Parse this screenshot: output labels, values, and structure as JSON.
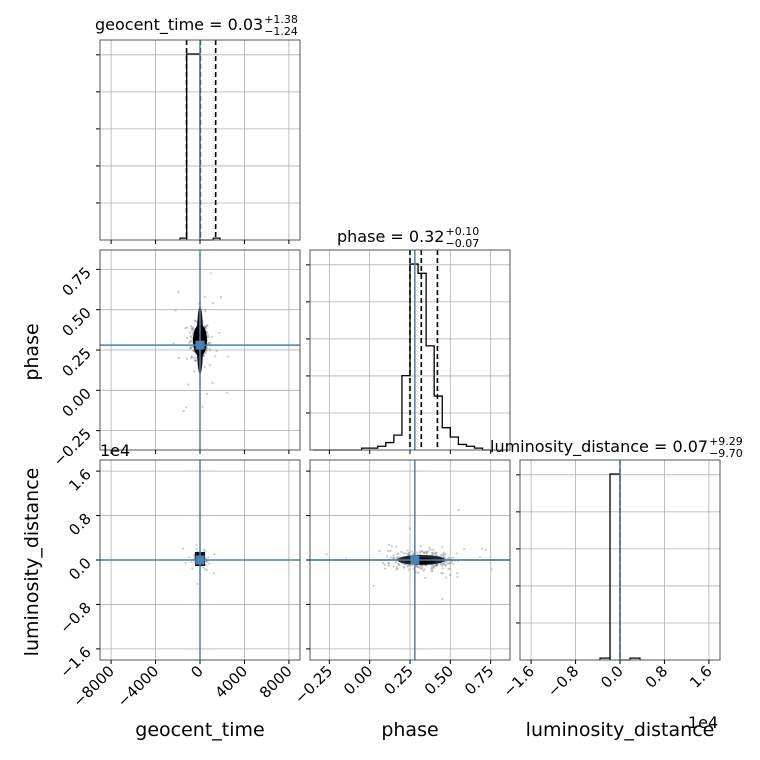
{
  "chart_data": {
    "type": "corner",
    "parameters": [
      "geocent_time",
      "phase",
      "luminosity_distance"
    ],
    "truth_color": "#4682b4",
    "titles": [
      {
        "name": "geocent_time",
        "median": "0.03",
        "plus": "+1.38",
        "minus": "−1.24"
      },
      {
        "name": "phase",
        "median": "0.32",
        "plus": "+0.10",
        "minus": "−0.07"
      },
      {
        "name": "luminosity_distance",
        "median": "0.07",
        "plus": "+9.29",
        "minus": "−9.70"
      }
    ],
    "title_eq": " = ",
    "ranges": {
      "geocent_time": [
        -9000,
        9000
      ],
      "phase": [
        -0.37,
        0.87
      ],
      "luminosity_distance": [
        -18000,
        18000
      ]
    },
    "ticks": {
      "geocent_time": {
        "values": [
          -8000,
          -4000,
          0,
          4000,
          8000
        ],
        "labels": [
          "−8000",
          "−4000",
          "0",
          "4000",
          "8000"
        ]
      },
      "phase": {
        "values": [
          -0.25,
          0.0,
          0.25,
          0.5,
          0.75
        ],
        "labels": [
          "−0.25",
          "0.00",
          "0.25",
          "0.50",
          "0.75"
        ]
      },
      "luminosity_distance": {
        "values": [
          -16000,
          -8000,
          0,
          8000,
          16000
        ],
        "labels": [
          "−1.6",
          "−0.8",
          "0.0",
          "0.8",
          "1.6"
        ]
      }
    },
    "offset_text": "1e4",
    "truths": {
      "geocent_time": 0.0,
      "phase": 0.28,
      "luminosity_distance": 0.0
    },
    "quantiles": {
      "geocent_time": [
        -1210,
        30,
        1410
      ],
      "phase": [
        0.25,
        0.32,
        0.42
      ]
    },
    "histograms": {
      "geocent_time": {
        "edges": [
          -1200,
          0,
          1200
        ],
        "counts": [
          1.0,
          0.0
        ],
        "extra": [
          [
            -1800,
            -1200,
            0.01
          ],
          [
            1200,
            1800,
            0.01
          ]
        ]
      },
      "phase": {
        "edges": [
          -0.35,
          -0.3,
          -0.25,
          -0.2,
          -0.15,
          -0.1,
          -0.05,
          0.0,
          0.05,
          0.1,
          0.15,
          0.2,
          0.25,
          0.3,
          0.35,
          0.4,
          0.45,
          0.5,
          0.55,
          0.6,
          0.65,
          0.7,
          0.75
        ],
        "counts": [
          0,
          0,
          0,
          0,
          0,
          0,
          0.01,
          0.01,
          0.02,
          0.04,
          0.08,
          0.4,
          1.0,
          0.95,
          0.56,
          0.29,
          0.12,
          0.07,
          0.03,
          0.02,
          0.01,
          0.0
        ]
      },
      "luminosity_distance": {
        "edges": [
          -1800,
          0,
          1800
        ],
        "counts": [
          1.0,
          0.0
        ],
        "extra": [
          [
            -3600,
            -1800,
            0.01
          ],
          [
            1800,
            3600,
            0.01
          ]
        ]
      }
    }
  }
}
